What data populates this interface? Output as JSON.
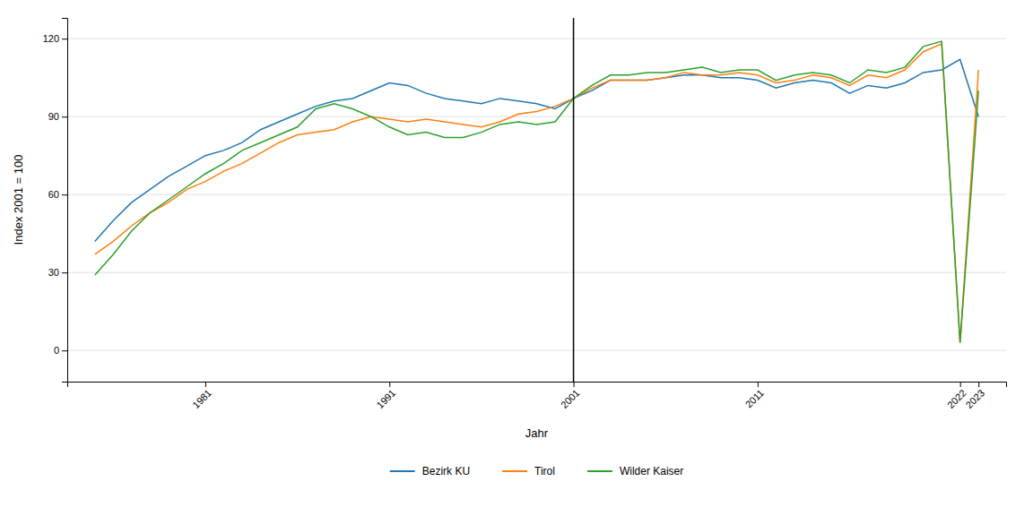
{
  "chart_data": {
    "type": "line",
    "xlabel": "Jahr",
    "ylabel": "Index 2001 = 100",
    "x": [
      1975,
      1976,
      1977,
      1978,
      1979,
      1980,
      1981,
      1982,
      1983,
      1984,
      1985,
      1986,
      1987,
      1988,
      1989,
      1990,
      1991,
      1992,
      1993,
      1994,
      1995,
      1996,
      1997,
      1998,
      1999,
      2000,
      2001,
      2002,
      2003,
      2004,
      2005,
      2006,
      2007,
      2008,
      2009,
      2010,
      2011,
      2012,
      2013,
      2014,
      2015,
      2016,
      2017,
      2018,
      2019,
      2020,
      2021,
      2022,
      2023
    ],
    "series": [
      {
        "name": "Bezirk KU",
        "values": [
          42,
          50,
          57,
          62,
          67,
          71,
          75,
          77,
          80,
          85,
          88,
          91,
          94,
          96,
          97,
          100,
          103,
          102,
          99,
          97,
          96,
          95,
          97,
          96,
          95,
          93,
          97,
          100,
          104,
          104,
          104,
          105,
          106,
          106,
          105,
          105,
          104,
          101,
          103,
          104,
          103,
          99,
          102,
          101,
          103,
          107,
          108,
          112,
          90
        ]
      },
      {
        "name": "Tirol",
        "values": [
          37,
          42,
          48,
          53,
          57,
          62,
          65,
          69,
          72,
          76,
          80,
          83,
          84,
          85,
          88,
          90,
          89,
          88,
          89,
          88,
          87,
          86,
          88,
          91,
          92,
          94,
          97,
          101,
          104,
          104,
          104,
          105,
          107,
          106,
          106,
          107,
          106,
          103,
          104,
          106,
          105,
          102,
          106,
          105,
          108,
          115,
          118,
          3,
          108
        ]
      },
      {
        "name": "Wilder Kaiser",
        "values": [
          29,
          37,
          46,
          53,
          58,
          63,
          68,
          72,
          77,
          80,
          83,
          86,
          93,
          95,
          93,
          90,
          86,
          83,
          84,
          82,
          82,
          84,
          87,
          88,
          87,
          88,
          97,
          102,
          106,
          106,
          107,
          107,
          108,
          109,
          107,
          108,
          108,
          104,
          106,
          107,
          106,
          103,
          108,
          107,
          109,
          117,
          119,
          3,
          100
        ]
      }
    ],
    "xlim": [
      1973.5,
      2024.5
    ],
    "xticks": [
      1981,
      1991,
      2001,
      2011,
      2022,
      2023
    ],
    "ylim": [
      -12,
      128
    ],
    "yticks": [
      0,
      30,
      60,
      90,
      120
    ],
    "grid": true,
    "legend": "bottom",
    "vlines": [
      2001
    ]
  }
}
